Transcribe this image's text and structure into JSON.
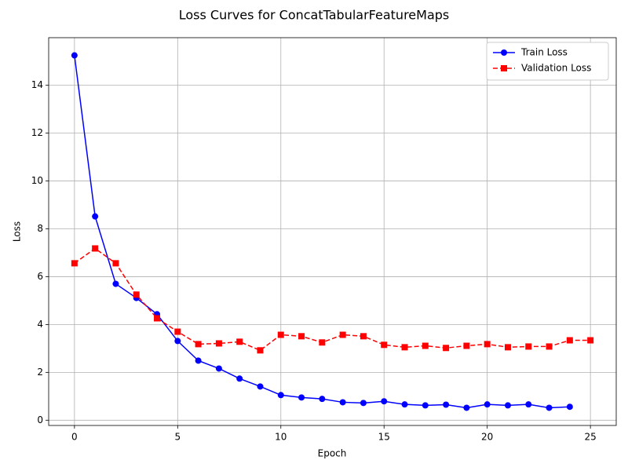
{
  "chart_data": {
    "type": "line",
    "title": "Loss Curves for ConcatTabularFeatureMaps",
    "xlabel": "Epoch",
    "ylabel": "Loss",
    "xlim": [
      -1.25,
      26.25
    ],
    "xticks": [
      0,
      5,
      10,
      15,
      20,
      25
    ],
    "ylim": [
      -0.22,
      15.99
    ],
    "yticks": [
      0,
      2,
      4,
      6,
      8,
      10,
      12,
      14
    ],
    "grid": true,
    "legend": "upper-right",
    "series": [
      {
        "name": "Train Loss",
        "color": "#0000ff",
        "marker": "circle",
        "dash": "solid",
        "x": [
          0,
          1,
          2,
          3,
          4,
          5,
          6,
          7,
          8,
          9,
          10,
          11,
          12,
          13,
          14,
          15,
          16,
          17,
          18,
          19,
          20,
          21,
          22,
          23,
          24
        ],
        "values": [
          15.25,
          8.52,
          5.7,
          5.11,
          4.43,
          3.31,
          2.49,
          2.16,
          1.74,
          1.41,
          1.05,
          0.95,
          0.89,
          0.75,
          0.72,
          0.79,
          0.66,
          0.62,
          0.65,
          0.52,
          0.66,
          0.62,
          0.66,
          0.52,
          0.56
        ]
      },
      {
        "name": "Validation Loss",
        "color": "#ff0000",
        "marker": "square",
        "dash": "dashed",
        "x": [
          0,
          1,
          2,
          3,
          4,
          5,
          6,
          7,
          8,
          9,
          10,
          11,
          12,
          13,
          14,
          15,
          16,
          17,
          18,
          19,
          20,
          21,
          22,
          23,
          24,
          25
        ],
        "values": [
          6.56,
          7.18,
          6.56,
          5.25,
          4.26,
          3.7,
          3.18,
          3.21,
          3.28,
          2.92,
          3.57,
          3.51,
          3.25,
          3.57,
          3.51,
          3.15,
          3.05,
          3.11,
          3.02,
          3.11,
          3.18,
          3.05,
          3.08,
          3.08,
          3.34,
          3.34
        ]
      }
    ]
  }
}
